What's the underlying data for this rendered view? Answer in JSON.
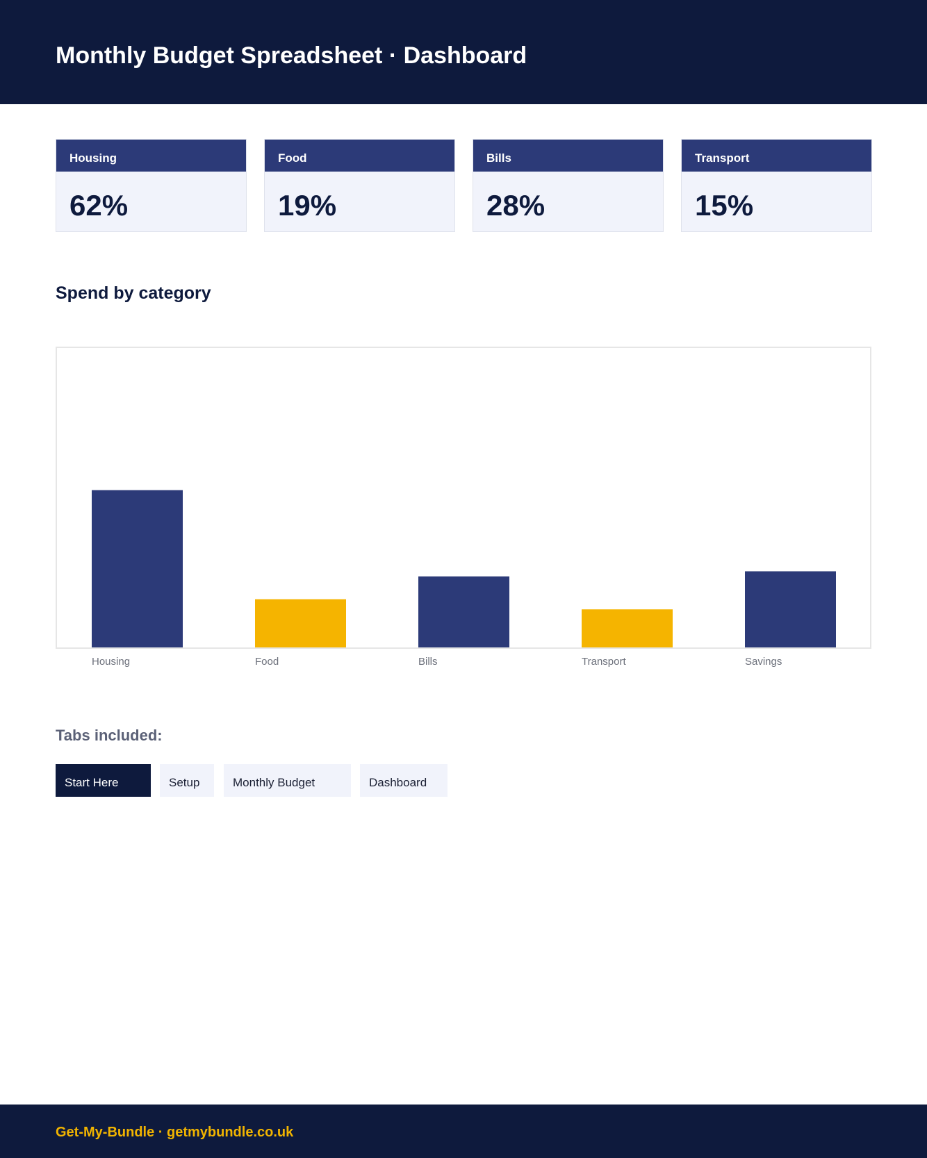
{
  "header": {
    "title": "Monthly Budget Spreadsheet · Dashboard"
  },
  "cards": [
    {
      "label": "Housing",
      "value": "62%"
    },
    {
      "label": "Food",
      "value": "19%"
    },
    {
      "label": "Bills",
      "value": "28%"
    },
    {
      "label": "Transport",
      "value": "15%"
    }
  ],
  "section": {
    "title": "Spend by category"
  },
  "chart_data": {
    "type": "bar",
    "title": "Spend by category",
    "categories": [
      "Housing",
      "Food",
      "Bills",
      "Transport",
      "Savings"
    ],
    "values": [
      62,
      19,
      28,
      15,
      30
    ],
    "bar_colors": [
      "#2c3a78",
      "#f5b400",
      "#2c3a78",
      "#f5b400",
      "#2c3a78"
    ],
    "ylim": [
      0,
      118
    ],
    "grid": false,
    "legend": "none",
    "xlabel": "",
    "ylabel": ""
  },
  "tabs_section": {
    "title": "Tabs included:",
    "tabs": [
      {
        "label": "Start Here",
        "active": true
      },
      {
        "label": "Setup",
        "active": false
      },
      {
        "label": "Monthly Budget",
        "active": false
      },
      {
        "label": "Dashboard",
        "active": false
      }
    ]
  },
  "footer": {
    "text": "Get-My-Bundle · getmybundle.co.uk"
  },
  "colors": {
    "navy": "#0e1a3d",
    "indigo": "#2c3a78",
    "accent_yellow": "#f5b400",
    "footer_text": "#f1b400"
  }
}
